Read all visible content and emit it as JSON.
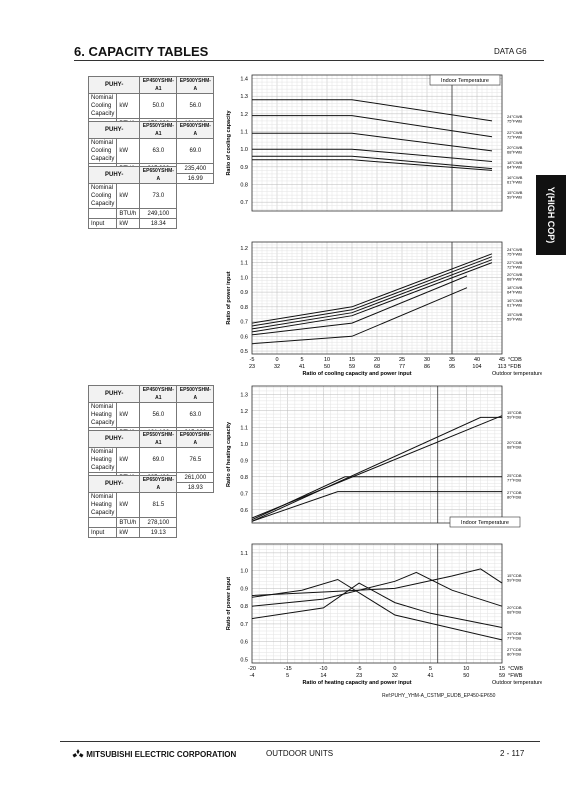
{
  "header": {
    "title": "6. CAPACITY TABLES",
    "right": "DATA G6"
  },
  "side_tab": "Y(HIGH COP)",
  "tables": {
    "cooling": [
      {
        "model_label": "PUHY-",
        "models": [
          "EP450YSHM-A1",
          "EP500YSHM-A"
        ],
        "rows": [
          {
            "label": "Nominal Cooling Capacity",
            "unit": "kW",
            "values": [
              "50.0",
              "56.0"
            ]
          },
          {
            "label": "",
            "unit": "BTU/h",
            "values": [
              "170,600",
              "191,100"
            ]
          },
          {
            "label": "Input",
            "unit": "kW",
            "values": [
              "11.87",
              "13.46"
            ]
          }
        ]
      },
      {
        "model_label": "PUHY-",
        "models": [
          "EP550YSHM-A1",
          "EP600YSHM-A"
        ],
        "rows": [
          {
            "label": "Nominal Cooling Capacity",
            "unit": "kW",
            "values": [
              "63.0",
              "69.0"
            ]
          },
          {
            "label": "",
            "unit": "BTU/h",
            "values": [
              "215,000",
              "235,400"
            ]
          },
          {
            "label": "Input",
            "unit": "kW",
            "values": [
              "15.44",
              "16.99"
            ]
          }
        ]
      },
      {
        "model_label": "PUHY-",
        "models": [
          "EP650YSHM-A"
        ],
        "rows": [
          {
            "label": "Nominal Cooling Capacity",
            "unit": "kW",
            "values": [
              "73.0"
            ]
          },
          {
            "label": "",
            "unit": "BTU/h",
            "values": [
              "249,100"
            ]
          },
          {
            "label": "Input",
            "unit": "kW",
            "values": [
              "18.34"
            ]
          }
        ]
      }
    ],
    "heating": [
      {
        "model_label": "PUHY-",
        "models": [
          "EP450YSHM-A1",
          "EP500YSHM-A"
        ],
        "rows": [
          {
            "label": "Nominal Heating Capacity",
            "unit": "kW",
            "values": [
              "56.0",
              "63.0"
            ]
          },
          {
            "label": "",
            "unit": "BTU/h",
            "values": [
              "191,100",
              "215,000"
            ]
          },
          {
            "label": "Input",
            "unit": "kW",
            "values": [
              "13.05",
              "15.14"
            ]
          }
        ]
      },
      {
        "model_label": "PUHY-",
        "models": [
          "EP550YSHM-A1",
          "EP600YSHM-A"
        ],
        "rows": [
          {
            "label": "Nominal Heating Capacity",
            "unit": "kW",
            "values": [
              "69.0",
              "76.5"
            ]
          },
          {
            "label": "",
            "unit": "BTU/h",
            "values": [
              "235,400",
              "261,000"
            ]
          },
          {
            "label": "Input",
            "unit": "kW",
            "values": [
              "16.82",
              "18.93"
            ]
          }
        ]
      },
      {
        "model_label": "PUHY-",
        "models": [
          "EP650YSHM-A"
        ],
        "rows": [
          {
            "label": "Nominal Heating Capacity",
            "unit": "kW",
            "values": [
              "81.5"
            ]
          },
          {
            "label": "",
            "unit": "BTU/h",
            "values": [
              "278,100"
            ]
          },
          {
            "label": "Input",
            "unit": "kW",
            "values": [
              "19.13"
            ]
          }
        ]
      }
    ]
  },
  "chart_data": [
    {
      "id": "cooling",
      "type": "line",
      "xlabel": "Ratio of cooling capacity and power input",
      "x_unit_labels": [
        "°CDB",
        "°FDB"
      ],
      "x_secondary_caption": "Outdoor temperature",
      "legend_title": "Indoor Temperature",
      "xlim": [
        -5,
        45
      ],
      "x_ticks": [
        "-5",
        "0",
        "5",
        "10",
        "15",
        "20",
        "25",
        "30",
        "35",
        "40",
        "45"
      ],
      "x_ticks_f": [
        "23",
        "32",
        "41",
        "50",
        "59",
        "68",
        "77",
        "86",
        "95",
        "104",
        "113"
      ],
      "vline_x": 35,
      "panels": [
        {
          "ylabel": "Ratio of cooling capacity",
          "ylim": [
            0.65,
            1.42
          ],
          "y_ticks": [
            "0.7",
            "0.8",
            "0.9",
            "1.0",
            "1.1",
            "1.2",
            "1.3",
            "1.4"
          ],
          "series": [
            {
              "name": "24°CWB 75°FWB",
              "x": [
                -5,
                15,
                43
              ],
              "y": [
                1.28,
                1.28,
                1.16
              ]
            },
            {
              "name": "22°CWB 72°FWB",
              "x": [
                -5,
                15,
                43
              ],
              "y": [
                1.19,
                1.19,
                1.07
              ]
            },
            {
              "name": "20°CWB 68°FWB",
              "x": [
                -5,
                15,
                43
              ],
              "y": [
                1.09,
                1.09,
                0.99
              ]
            },
            {
              "name": "18°CWB 64°FWB",
              "x": [
                -5,
                15,
                43
              ],
              "y": [
                1.0,
                1.0,
                0.93
              ]
            },
            {
              "name": "16°CWB 61°FWB",
              "x": [
                -5,
                15,
                43
              ],
              "y": [
                0.96,
                0.96,
                0.89
              ]
            },
            {
              "name": "15°CWB 59°FWB",
              "x": [
                -5,
                15,
                43
              ],
              "y": [
                0.94,
                0.94,
                0.88
              ]
            }
          ]
        },
        {
          "ylabel": "Ratio of power input",
          "ylim": [
            0.48,
            1.24
          ],
          "y_ticks": [
            "0.5",
            "0.6",
            "0.7",
            "0.8",
            "0.9",
            "1.0",
            "1.1",
            "1.2"
          ],
          "series": [
            {
              "name": "24°CWB 75°FWB",
              "x": [
                -5,
                15,
                43
              ],
              "y": [
                0.69,
                0.8,
                1.16
              ]
            },
            {
              "name": "22°CWB 72°FWB",
              "x": [
                -5,
                15,
                43
              ],
              "y": [
                0.67,
                0.78,
                1.14
              ]
            },
            {
              "name": "20°CWB 68°FWB",
              "x": [
                -5,
                15,
                43
              ],
              "y": [
                0.65,
                0.76,
                1.12
              ]
            },
            {
              "name": "18°CWB 64°FWB",
              "x": [
                -5,
                15,
                43
              ],
              "y": [
                0.63,
                0.74,
                1.1
              ]
            },
            {
              "name": "16°CWB 61°FWB",
              "x": [
                -5,
                15,
                38
              ],
              "y": [
                0.61,
                0.69,
                1.01
              ]
            },
            {
              "name": "15°CWB 59°FWB",
              "x": [
                -5,
                15,
                38
              ],
              "y": [
                0.55,
                0.6,
                0.93
              ]
            }
          ]
        }
      ]
    },
    {
      "id": "heating",
      "type": "line",
      "xlabel": "Ratio of heating capacity and power input",
      "x_unit_labels": [
        "°CWB",
        "°FWB"
      ],
      "x_secondary_caption": "Outdoor temperature",
      "legend_title": "Indoor Temperature",
      "xlim": [
        -20,
        15
      ],
      "x_ticks": [
        "-20",
        "-15",
        "-10",
        "-5",
        "0",
        "5",
        "10",
        "15"
      ],
      "x_ticks_f": [
        "-4",
        "5",
        "14",
        "23",
        "32",
        "41",
        "50",
        "59"
      ],
      "vline_x": 6,
      "panels": [
        {
          "ylabel": "Ratio of heating capacity",
          "ylim": [
            0.52,
            1.35
          ],
          "y_ticks": [
            "0.6",
            "0.7",
            "0.8",
            "0.9",
            "1.0",
            "1.1",
            "1.2",
            "1.3"
          ],
          "series": [
            {
              "name": "15°CDB 59°FDB",
              "x": [
                -20,
                12,
                15
              ],
              "y": [
                0.53,
                1.16,
                1.16
              ]
            },
            {
              "name": "20°CDB 68°FDB",
              "x": [
                -20,
                15
              ],
              "y": [
                0.55,
                1.17
              ]
            },
            {
              "name": "25°CDB 77°FDB",
              "x": [
                -20,
                -7,
                15
              ],
              "y": [
                0.54,
                0.8,
                0.8
              ]
            },
            {
              "name": "27°CDB 80°FDB",
              "x": [
                -20,
                -8,
                15
              ],
              "y": [
                0.53,
                0.71,
                0.71
              ]
            }
          ]
        },
        {
          "ylabel": "Ratio of power input",
          "ylim": [
            0.48,
            1.15
          ],
          "y_ticks": [
            "0.5",
            "0.6",
            "0.7",
            "0.8",
            "0.9",
            "1.0",
            "1.1"
          ],
          "series": [
            {
              "name": "15°CDB 59°FDB",
              "x": [
                -20,
                -10,
                0,
                8,
                12,
                15
              ],
              "y": [
                0.86,
                0.88,
                0.9,
                0.97,
                1.01,
                0.93
              ]
            },
            {
              "name": "20°CDB 68°FDB",
              "x": [
                -20,
                -10,
                0,
                3,
                8,
                15
              ],
              "y": [
                0.8,
                0.84,
                0.94,
                0.99,
                0.89,
                0.8
              ]
            },
            {
              "name": "25°CDB 77°FDB",
              "x": [
                -20,
                -10,
                -5,
                0,
                5,
                15
              ],
              "y": [
                0.73,
                0.79,
                0.93,
                0.82,
                0.76,
                0.68
              ]
            },
            {
              "name": "27°CDB 80°FDB",
              "x": [
                -20,
                -13,
                -8,
                0,
                15
              ],
              "y": [
                0.85,
                0.89,
                0.95,
                0.75,
                0.61
              ]
            }
          ]
        }
      ]
    }
  ],
  "ref_note": "Ref:PUHY_YHM-A_CSTMP_EUDB_EP450-EP650",
  "footer": {
    "brand": "MITSUBISHI ELECTRIC CORPORATION",
    "section": "OUTDOOR UNITS",
    "page": "2 - 117"
  },
  "colors": {
    "curve": "#111111",
    "grid_major": "#b9b9b9",
    "grid_minor": "#e3e3e3"
  }
}
